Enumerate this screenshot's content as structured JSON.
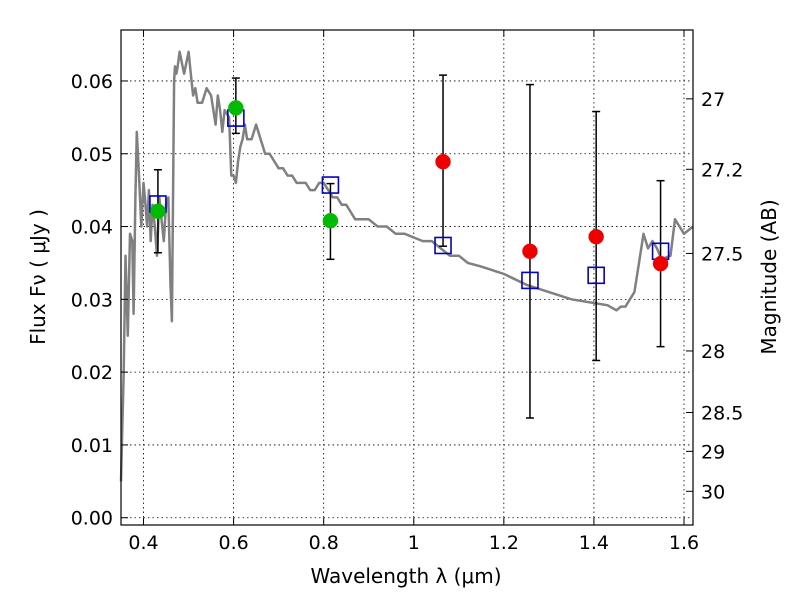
{
  "chart_data": {
    "type": "scatter",
    "xlabel": "Wavelength  λ (μm)",
    "ylabel": "Flux  Fν  ( μJy )",
    "ylabel_right": "Magnitude (AB)",
    "xlim": [
      0.35,
      1.62
    ],
    "ylim": [
      -0.001,
      0.067
    ],
    "x_ticks": [
      "0.4",
      "0.6",
      "0.8",
      "1",
      "1.2",
      "1.4",
      "1.6"
    ],
    "x_tick_values": [
      0.4,
      0.6,
      0.8,
      1.0,
      1.2,
      1.4,
      1.6
    ],
    "y_ticks": [
      "0.00",
      "0.01",
      "0.02",
      "0.03",
      "0.04",
      "0.05",
      "0.06"
    ],
    "y_tick_values": [
      0.0,
      0.01,
      0.02,
      0.03,
      0.04,
      0.05,
      0.06
    ],
    "mag_ticks": [
      "27",
      "27.2",
      "27.5",
      "28",
      "28.5",
      "29",
      "30"
    ],
    "mag_tick_values": [
      27.0,
      27.2,
      27.5,
      28.0,
      28.5,
      29.0,
      30.0
    ],
    "grid": true,
    "colors": {
      "model": "#808080",
      "model_points": "#0000cc",
      "green_points": "#00bb00",
      "red_points": "#ee0000",
      "errorbar": "#000000"
    },
    "model_spectrum": {
      "x": [
        0.35,
        0.356,
        0.36,
        0.365,
        0.37,
        0.375,
        0.378,
        0.382,
        0.385,
        0.39,
        0.395,
        0.4,
        0.403,
        0.408,
        0.412,
        0.416,
        0.42,
        0.425,
        0.43,
        0.435,
        0.44,
        0.445,
        0.45,
        0.455,
        0.46,
        0.463,
        0.468,
        0.47,
        0.473,
        0.476,
        0.48,
        0.49,
        0.5,
        0.505,
        0.51,
        0.515,
        0.52,
        0.53,
        0.54,
        0.55,
        0.56,
        0.565,
        0.57,
        0.575,
        0.58,
        0.59,
        0.595,
        0.6,
        0.605,
        0.61,
        0.615,
        0.62,
        0.625,
        0.63,
        0.64,
        0.65,
        0.66,
        0.665,
        0.67,
        0.68,
        0.69,
        0.7,
        0.71,
        0.72,
        0.73,
        0.74,
        0.75,
        0.76,
        0.77,
        0.78,
        0.79,
        0.8,
        0.81,
        0.82,
        0.83,
        0.84,
        0.85,
        0.86,
        0.87,
        0.88,
        0.9,
        0.92,
        0.94,
        0.96,
        0.98,
        1.0,
        1.02,
        1.04,
        1.06,
        1.08,
        1.1,
        1.12,
        1.15,
        1.2,
        1.25,
        1.3,
        1.35,
        1.4,
        1.43,
        1.45,
        1.46,
        1.47,
        1.48,
        1.49,
        1.5,
        1.51,
        1.52,
        1.53,
        1.54,
        1.55,
        1.57,
        1.58,
        1.59,
        1.6,
        1.62
      ],
      "y": [
        0.005,
        0.02,
        0.036,
        0.025,
        0.039,
        0.038,
        0.028,
        0.044,
        0.053,
        0.047,
        0.04,
        0.046,
        0.044,
        0.04,
        0.045,
        0.038,
        0.043,
        0.04,
        0.036,
        0.044,
        0.041,
        0.038,
        0.043,
        0.044,
        0.032,
        0.027,
        0.06,
        0.062,
        0.061,
        0.062,
        0.064,
        0.061,
        0.064,
        0.061,
        0.058,
        0.059,
        0.057,
        0.057,
        0.059,
        0.058,
        0.054,
        0.058,
        0.056,
        0.053,
        0.056,
        0.055,
        0.047,
        0.047,
        0.046,
        0.049,
        0.051,
        0.052,
        0.054,
        0.052,
        0.052,
        0.054,
        0.052,
        0.051,
        0.05,
        0.05,
        0.049,
        0.048,
        0.048,
        0.047,
        0.047,
        0.046,
        0.046,
        0.046,
        0.045,
        0.045,
        0.046,
        0.046,
        0.045,
        0.044,
        0.044,
        0.043,
        0.043,
        0.042,
        0.041,
        0.041,
        0.041,
        0.04,
        0.04,
        0.039,
        0.039,
        0.0385,
        0.038,
        0.038,
        0.037,
        0.036,
        0.036,
        0.035,
        0.0345,
        0.0335,
        0.032,
        0.031,
        0.03,
        0.0295,
        0.0292,
        0.0285,
        0.029,
        0.029,
        0.03,
        0.031,
        0.035,
        0.039,
        0.037,
        0.038,
        0.037,
        0.0355,
        0.036,
        0.041,
        0.04,
        0.039,
        0.04
      ]
    },
    "series": [
      {
        "marker": "open-square",
        "color": "#0000cc",
        "x": [
          0.432,
          0.605,
          0.815,
          1.065,
          1.258,
          1.405,
          1.548
        ],
        "y": [
          0.0431,
          0.0549,
          0.0457,
          0.0374,
          0.0326,
          0.0333,
          0.0366
        ]
      },
      {
        "marker": "filled-circle",
        "color": "#00bb00",
        "x": [
          0.432,
          0.605,
          0.815
        ],
        "y": [
          0.0421,
          0.0563,
          0.0408
        ],
        "err_lo": [
          0.0057,
          0.0035,
          0.0053
        ],
        "err_hi": [
          0.0057,
          0.0041,
          0.0051
        ]
      },
      {
        "marker": "filled-circle",
        "color": "#ee0000",
        "x": [
          1.065,
          1.258,
          1.405,
          1.548
        ],
        "y": [
          0.0489,
          0.0366,
          0.0386,
          0.0349
        ],
        "err_lo": [
          0.0116,
          0.0229,
          0.017,
          0.0114
        ],
        "err_hi": [
          0.0119,
          0.0229,
          0.0172,
          0.0114
        ]
      }
    ]
  }
}
